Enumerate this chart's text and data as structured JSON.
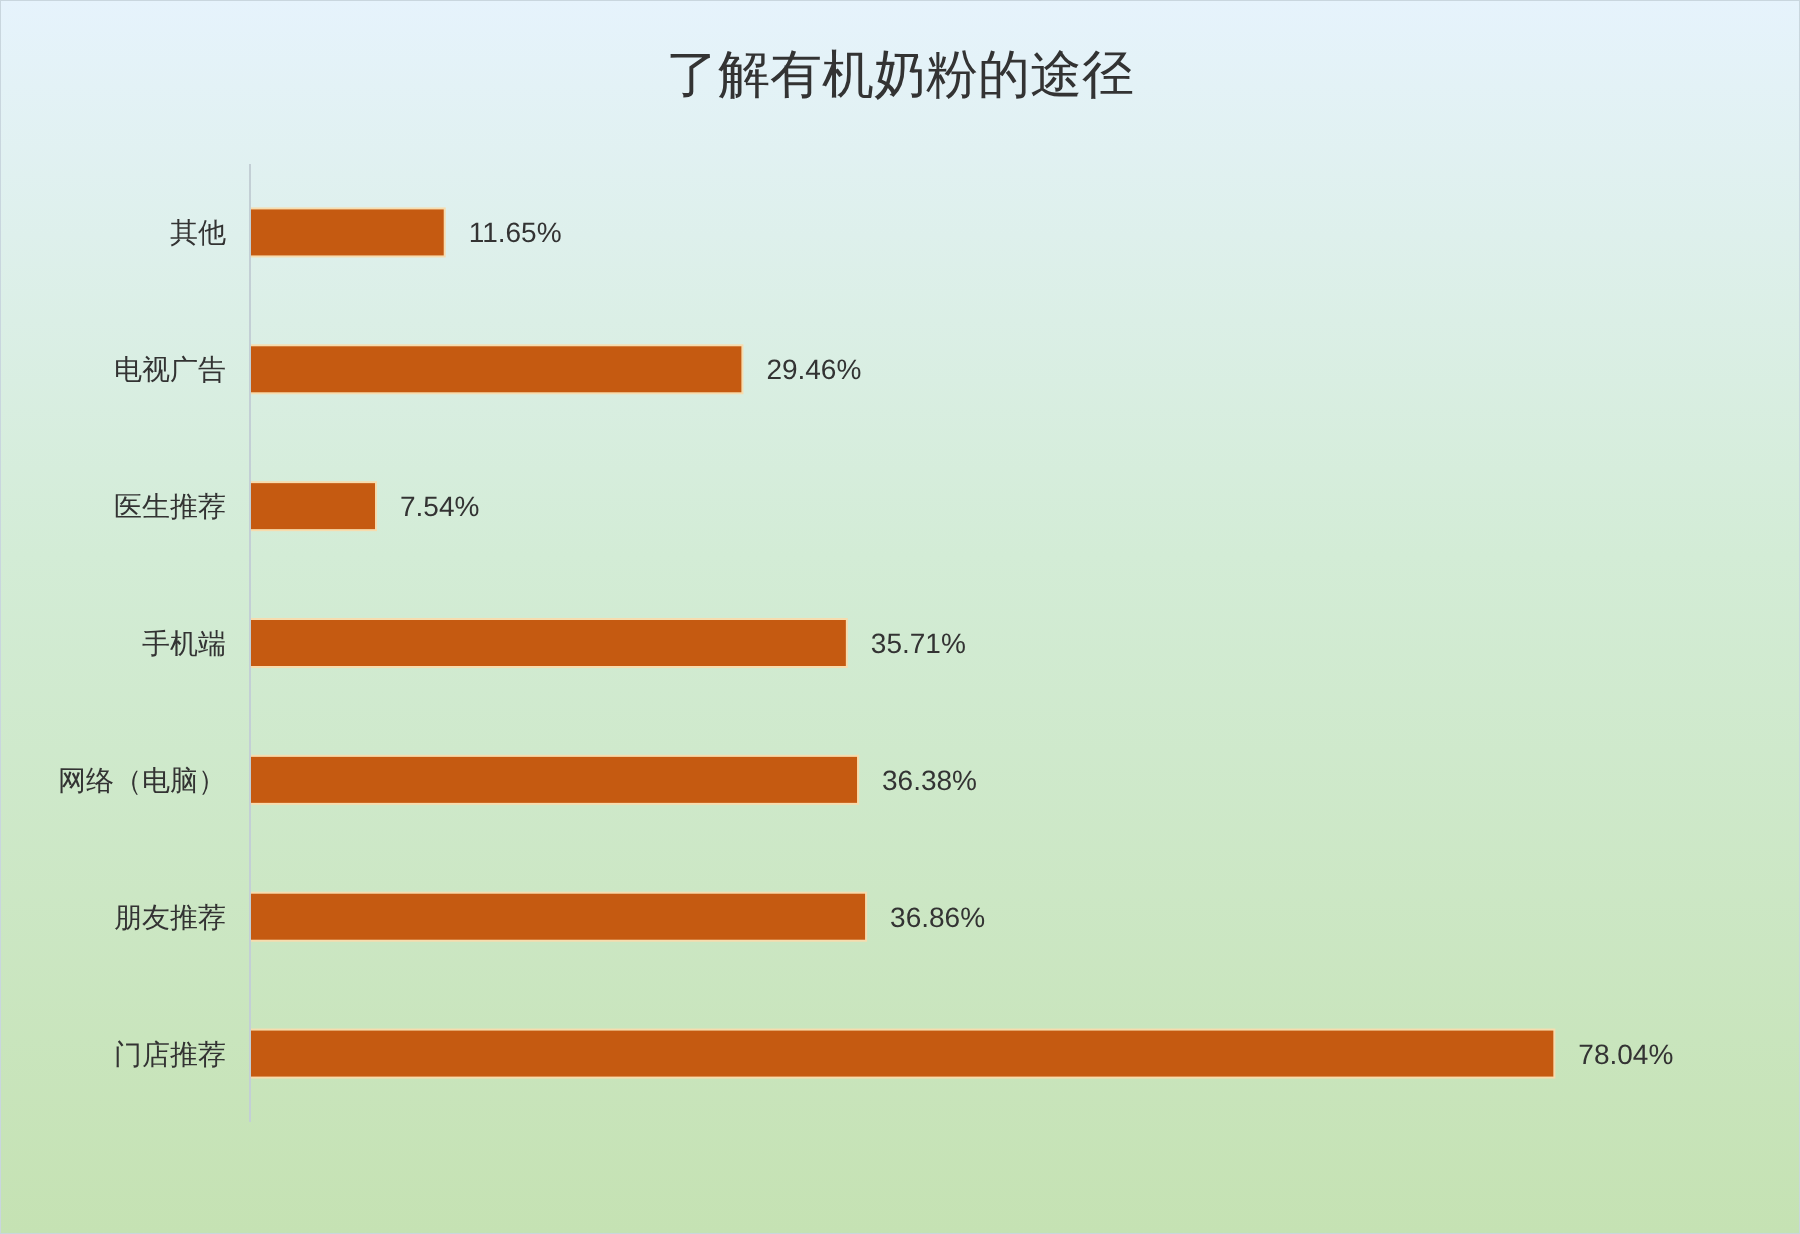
{
  "chart_data": {
    "type": "bar",
    "orientation": "horizontal",
    "title": "了解有机奶粉的途径",
    "categories": [
      "其他",
      "电视广告",
      "医生推荐",
      "手机端",
      "网络（电脑）",
      "朋友推荐",
      "门店推荐"
    ],
    "values": [
      11.65,
      29.46,
      7.54,
      35.71,
      36.38,
      36.86,
      78.04
    ],
    "value_labels": [
      "11.65%",
      "29.46%",
      "7.54%",
      "35.71%",
      "36.38%",
      "36.86%",
      "78.04%"
    ],
    "color": "#c55a11"
  }
}
